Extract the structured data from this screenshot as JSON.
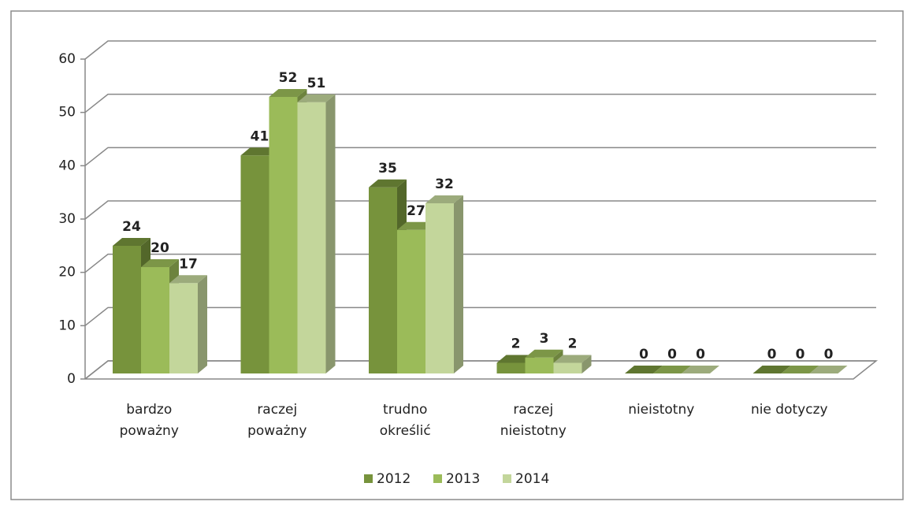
{
  "chart_data": {
    "type": "bar3d",
    "categories": [
      "bardzo poważny",
      "raczej poważny",
      "trudno określić",
      "raczej nieistotny",
      "nieistotny",
      "nie dotyczy"
    ],
    "series": [
      {
        "name": "2012",
        "color": "#77933c",
        "values": [
          24,
          41,
          35,
          2,
          0,
          0
        ]
      },
      {
        "name": "2013",
        "color": "#9bbb59",
        "values": [
          20,
          52,
          27,
          3,
          0,
          0
        ]
      },
      {
        "name": "2014",
        "color": "#c3d69b",
        "values": [
          17,
          51,
          32,
          2,
          0,
          0
        ]
      }
    ],
    "ylim": [
      0,
      60
    ],
    "yticks": [
      0,
      10,
      20,
      30,
      40,
      50,
      60
    ],
    "grid": true,
    "legend": "bottom"
  }
}
